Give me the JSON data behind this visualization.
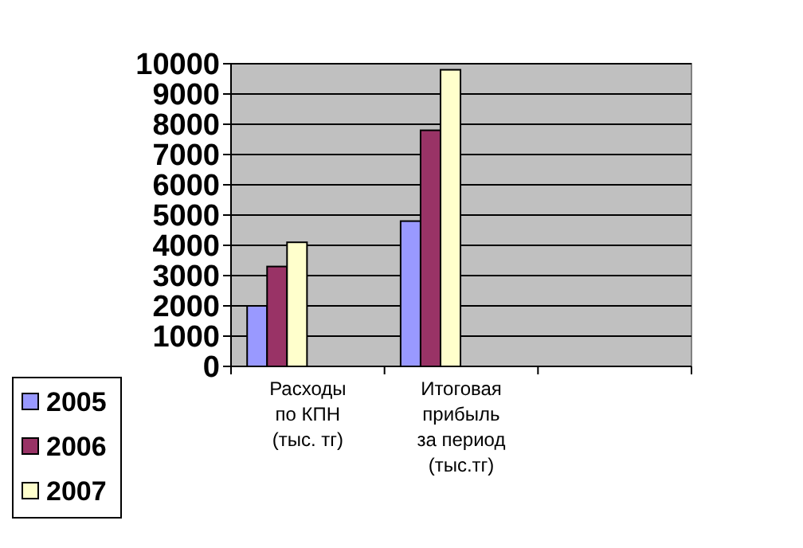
{
  "chart_data": {
    "type": "bar",
    "categories": [
      "Расходы по КПН (тыс. тг)",
      "Итоговая прибыль за период (тыс.тг)",
      null
    ],
    "series": [
      {
        "name": "2005",
        "color": "#9999ff",
        "values": [
          2000,
          4800,
          null
        ]
      },
      {
        "name": "2006",
        "color": "#993366",
        "values": [
          3300,
          7800,
          null
        ]
      },
      {
        "name": "2007",
        "color": "#ffffcc",
        "values": [
          4100,
          9800,
          null
        ]
      }
    ],
    "ylim": [
      0,
      10000
    ],
    "yticks": [
      0,
      1000,
      2000,
      3000,
      4000,
      5000,
      6000,
      7000,
      8000,
      9000,
      10000
    ],
    "grid": "y",
    "legend": "bottom left"
  }
}
